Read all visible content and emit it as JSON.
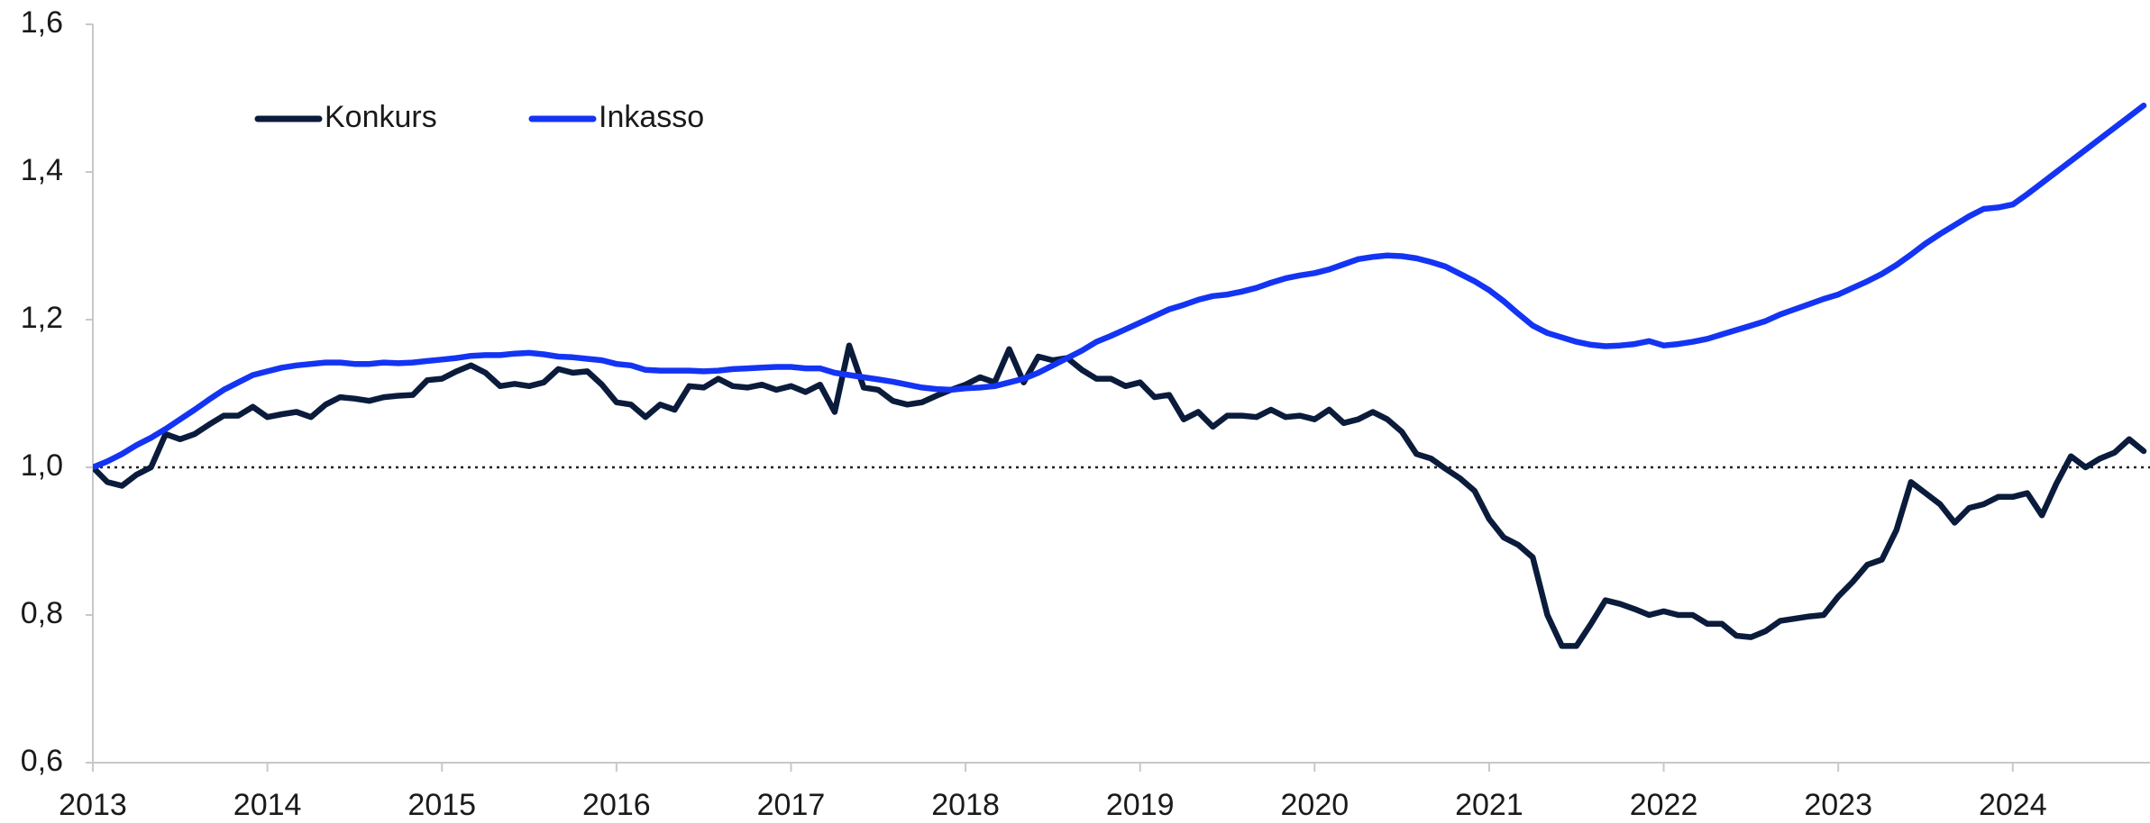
{
  "chart_data": {
    "type": "line",
    "categories": [
      "2013",
      null,
      null,
      null,
      null,
      null,
      null,
      null,
      null,
      null,
      null,
      null,
      "2014",
      null,
      null,
      null,
      null,
      null,
      null,
      null,
      null,
      null,
      null,
      null,
      "2015",
      null,
      null,
      null,
      null,
      null,
      null,
      null,
      null,
      null,
      null,
      null,
      "2016",
      null,
      null,
      null,
      null,
      null,
      null,
      null,
      null,
      null,
      null,
      null,
      "2017",
      null,
      null,
      null,
      null,
      null,
      null,
      null,
      null,
      null,
      null,
      null,
      "2018",
      null,
      null,
      null,
      null,
      null,
      null,
      null,
      null,
      null,
      null,
      null,
      "2019",
      null,
      null,
      null,
      null,
      null,
      null,
      null,
      null,
      null,
      null,
      null,
      "2020",
      null,
      null,
      null,
      null,
      null,
      null,
      null,
      null,
      null,
      null,
      null,
      "2021",
      null,
      null,
      null,
      null,
      null,
      null,
      null,
      null,
      null,
      null,
      null,
      "2022",
      null,
      null,
      null,
      null,
      null,
      null,
      null,
      null,
      null,
      null,
      null,
      "2023",
      null,
      null,
      null,
      null,
      null,
      null,
      null,
      null,
      null,
      null,
      null,
      "2024",
      null,
      null,
      null,
      null,
      null,
      null,
      null,
      null,
      null
    ],
    "series": [
      {
        "name": "Konkurs",
        "color": "#0b1b3b",
        "values": [
          1.0,
          0.98,
          0.975,
          0.99,
          1.0,
          1.045,
          1.038,
          1.045,
          1.058,
          1.07,
          1.07,
          1.082,
          1.068,
          1.072,
          1.075,
          1.068,
          1.085,
          1.095,
          1.093,
          1.09,
          1.095,
          1.097,
          1.098,
          1.118,
          1.12,
          1.13,
          1.138,
          1.128,
          1.11,
          1.113,
          1.11,
          1.115,
          1.133,
          1.128,
          1.13,
          1.112,
          1.088,
          1.085,
          1.068,
          1.085,
          1.078,
          1.11,
          1.108,
          1.12,
          1.11,
          1.108,
          1.112,
          1.105,
          1.11,
          1.102,
          1.112,
          1.075,
          1.165,
          1.108,
          1.105,
          1.09,
          1.085,
          1.088,
          1.097,
          1.105,
          1.112,
          1.122,
          1.115,
          1.16,
          1.115,
          1.15,
          1.145,
          1.148,
          1.132,
          1.12,
          1.12,
          1.11,
          1.115,
          1.095,
          1.098,
          1.065,
          1.075,
          1.055,
          1.07,
          1.07,
          1.068,
          1.078,
          1.068,
          1.07,
          1.065,
          1.078,
          1.06,
          1.065,
          1.075,
          1.065,
          1.048,
          1.018,
          1.012,
          0.998,
          0.985,
          0.968,
          0.93,
          0.905,
          0.895,
          0.878,
          0.8,
          0.758,
          0.758,
          0.788,
          0.82,
          0.815,
          0.808,
          0.8,
          0.805,
          0.8,
          0.8,
          0.788,
          0.788,
          0.772,
          0.77,
          0.778,
          0.792,
          0.795,
          0.798,
          0.8,
          0.825,
          0.845,
          0.868,
          0.875,
          0.915,
          0.98,
          0.965,
          0.95,
          0.925,
          0.945,
          0.95,
          0.96,
          0.96,
          0.965,
          0.935,
          0.978,
          1.015,
          1.0,
          1.012,
          1.02,
          1.038,
          1.022
        ]
      },
      {
        "name": "Inkasso",
        "color": "#1434f4",
        "values": [
          1.0,
          1.008,
          1.018,
          1.03,
          1.04,
          1.052,
          1.065,
          1.078,
          1.092,
          1.105,
          1.115,
          1.125,
          1.13,
          1.135,
          1.138,
          1.14,
          1.142,
          1.142,
          1.14,
          1.14,
          1.142,
          1.141,
          1.142,
          1.144,
          1.146,
          1.148,
          1.151,
          1.152,
          1.152,
          1.154,
          1.155,
          1.153,
          1.15,
          1.149,
          1.147,
          1.145,
          1.14,
          1.138,
          1.132,
          1.131,
          1.131,
          1.131,
          1.13,
          1.131,
          1.133,
          1.134,
          1.135,
          1.136,
          1.136,
          1.134,
          1.134,
          1.128,
          1.125,
          1.122,
          1.119,
          1.116,
          1.112,
          1.108,
          1.106,
          1.105,
          1.107,
          1.108,
          1.11,
          1.115,
          1.12,
          1.128,
          1.138,
          1.148,
          1.158,
          1.17,
          1.178,
          1.187,
          1.196,
          1.205,
          1.214,
          1.22,
          1.227,
          1.232,
          1.234,
          1.238,
          1.243,
          1.25,
          1.256,
          1.26,
          1.263,
          1.268,
          1.275,
          1.282,
          1.285,
          1.287,
          1.286,
          1.283,
          1.278,
          1.272,
          1.262,
          1.252,
          1.24,
          1.225,
          1.208,
          1.192,
          1.182,
          1.176,
          1.17,
          1.166,
          1.164,
          1.165,
          1.167,
          1.171,
          1.165,
          1.167,
          1.17,
          1.174,
          1.18,
          1.186,
          1.192,
          1.198,
          1.207,
          1.214,
          1.221,
          1.228,
          1.234,
          1.243,
          1.252,
          1.262,
          1.274,
          1.288,
          1.303,
          1.316,
          1.328,
          1.34,
          1.35,
          1.352,
          1.356,
          1.37,
          1.385,
          1.4,
          1.415,
          1.43,
          1.445,
          1.46,
          1.475,
          1.49
        ]
      }
    ],
    "xlim": [
      0,
      141
    ],
    "ylim": [
      0.6,
      1.6
    ],
    "yticks": [
      {
        "value": 0.6,
        "label": "0,6"
      },
      {
        "value": 0.8,
        "label": "0,8"
      },
      {
        "value": 1.0,
        "label": "1,0"
      },
      {
        "value": 1.2,
        "label": "1,2"
      },
      {
        "value": 1.4,
        "label": "1,4"
      },
      {
        "value": 1.6,
        "label": "1,6"
      }
    ],
    "reference_line": 1.0,
    "grid": false
  }
}
